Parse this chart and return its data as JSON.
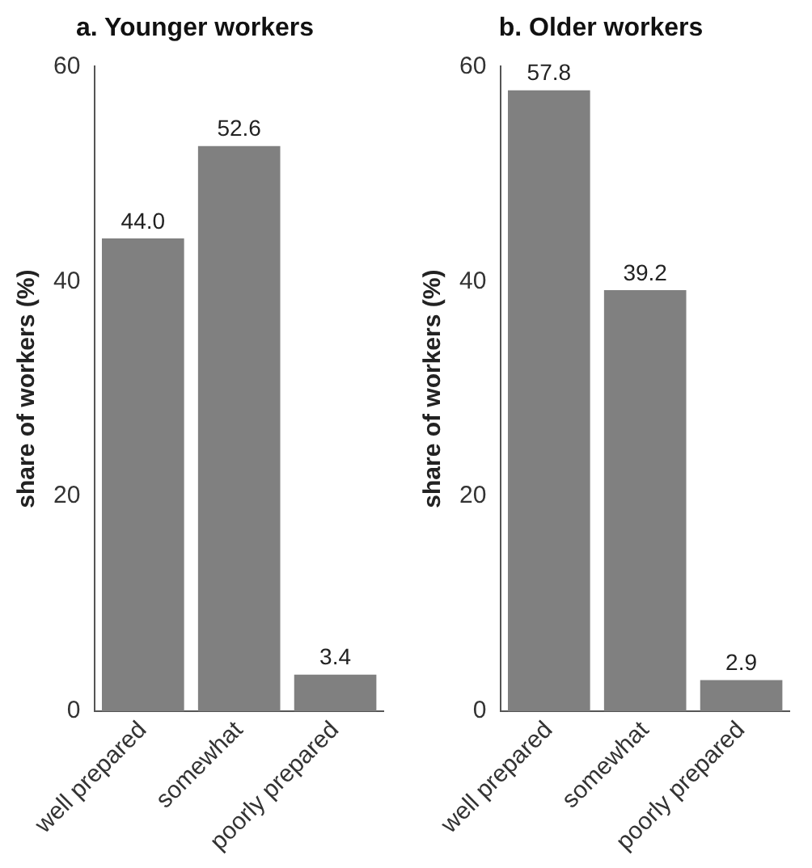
{
  "chart_data": [
    {
      "type": "bar",
      "title": "a. Younger workers",
      "ylabel": "share of workers (%)",
      "categories": [
        "well prepared",
        "somewhat",
        "poorly prepared"
      ],
      "values": [
        44.0,
        52.6,
        3.4
      ],
      "value_labels": [
        "44.0",
        "52.6",
        "3.4"
      ],
      "color": "#808080",
      "ylim": [
        0,
        60
      ],
      "yticks": [
        0,
        20,
        40,
        60
      ]
    },
    {
      "type": "bar",
      "title": "b. Older workers",
      "ylabel": "share of workers (%)",
      "categories": [
        "well prepared",
        "somewhat",
        "poorly prepared"
      ],
      "values": [
        57.8,
        39.2,
        2.9
      ],
      "value_labels": [
        "57.8",
        "39.2",
        "2.9"
      ],
      "color": "#808080",
      "ylim": [
        0,
        60
      ],
      "yticks": [
        0,
        20,
        40,
        60
      ]
    }
  ]
}
